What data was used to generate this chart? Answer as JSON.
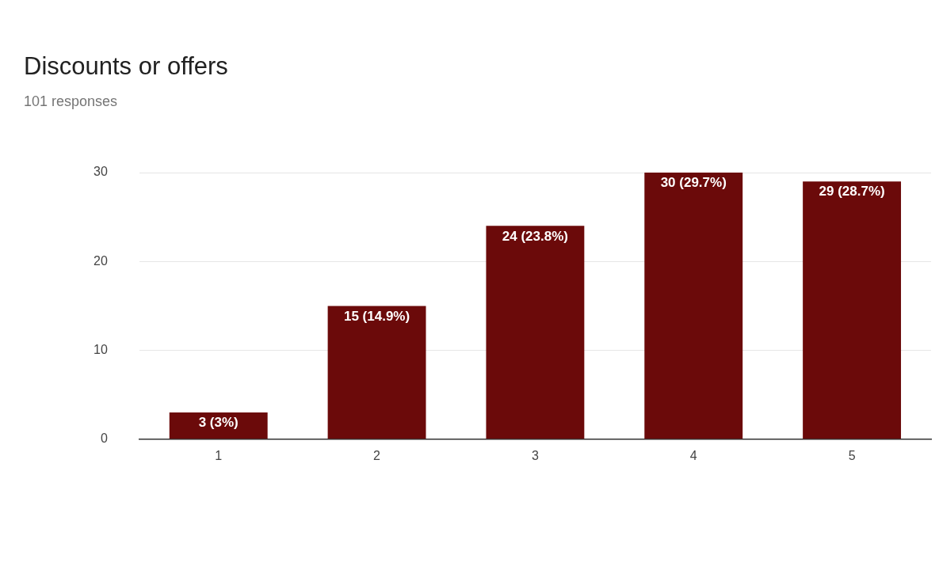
{
  "chart_data": {
    "type": "bar",
    "title": "Discounts or offers",
    "subtitle": "101 responses",
    "categories": [
      "1",
      "2",
      "3",
      "4",
      "5"
    ],
    "values": [
      3,
      15,
      24,
      30,
      29
    ],
    "value_labels": [
      "3 (3%)",
      "15 (14.9%)",
      "24 (23.8%)",
      "30 (29.7%)",
      "29 (28.7%)"
    ],
    "color": "#6b0a0a",
    "ylim": [
      0,
      30
    ],
    "yticks": [
      0,
      10,
      20,
      30
    ],
    "grid": "y",
    "legend": false
  }
}
